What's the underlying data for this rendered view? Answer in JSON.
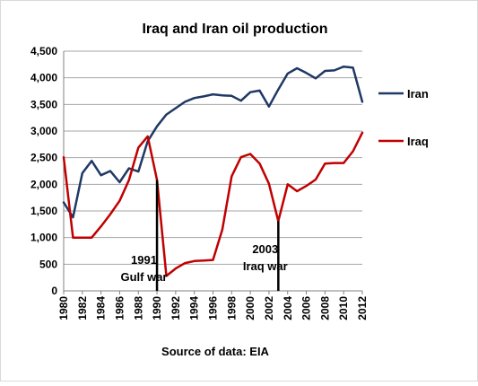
{
  "chart_data": {
    "type": "line",
    "title": "Iraq and Iran oil production",
    "source": "Source of data:  EIA",
    "x": [
      1980,
      1981,
      1982,
      1983,
      1984,
      1985,
      1986,
      1987,
      1988,
      1989,
      1990,
      1991,
      1992,
      1993,
      1994,
      1995,
      1996,
      1997,
      1998,
      1999,
      2000,
      2001,
      2002,
      2003,
      2004,
      2005,
      2006,
      2007,
      2008,
      2009,
      2010,
      2011,
      2012
    ],
    "xlim": [
      1980,
      2012
    ],
    "x_ticks": [
      "1980",
      "1982",
      "1984",
      "1986",
      "1988",
      "1990",
      "1992",
      "1994",
      "1996",
      "1998",
      "2000",
      "2002",
      "2004",
      "2006",
      "2008",
      "2010",
      "2012"
    ],
    "ylim": [
      0,
      4500
    ],
    "y_ticks": [
      "0",
      "500",
      "1,000",
      "1,500",
      "2,000",
      "2,500",
      "3,000",
      "3,500",
      "4,000",
      "4,500"
    ],
    "grid": "horizontal",
    "legend_position": "right",
    "series": [
      {
        "name": "Iran",
        "color": "#1f3864",
        "values": [
          1660,
          1380,
          2210,
          2440,
          2170,
          2250,
          2040,
          2300,
          2240,
          2810,
          3090,
          3310,
          3430,
          3550,
          3620,
          3650,
          3690,
          3670,
          3660,
          3570,
          3730,
          3760,
          3460,
          3780,
          4080,
          4180,
          4090,
          3990,
          4130,
          4140,
          4210,
          4190,
          3550
        ]
      },
      {
        "name": "Iraq",
        "color": "#c00000",
        "values": [
          2510,
          1000,
          1000,
          1000,
          1210,
          1440,
          1690,
          2080,
          2690,
          2900,
          2080,
          280,
          420,
          520,
          560,
          570,
          580,
          1150,
          2150,
          2510,
          2570,
          2390,
          2010,
          1310,
          2000,
          1870,
          1970,
          2090,
          2390,
          2400,
          2400,
          2620,
          2970
        ]
      }
    ],
    "annotations": [
      {
        "year": 1990,
        "line1": "1991",
        "line2": "Gulf war",
        "marker": "black-vertical-line"
      },
      {
        "year": 2003,
        "line1": "2003",
        "line2": "Iraq war",
        "marker": "black-vertical-line"
      }
    ]
  }
}
